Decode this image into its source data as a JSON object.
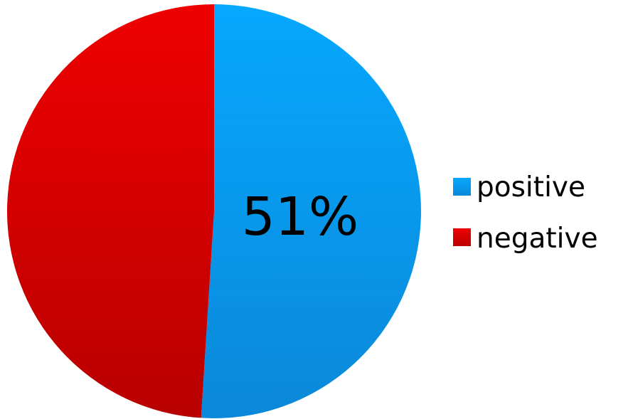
{
  "chart_data": {
    "type": "pie",
    "title": "",
    "slices": [
      {
        "label": "positive",
        "value": 51,
        "color": "#009ff0"
      },
      {
        "label": "negative",
        "value": 49,
        "color": "#e50000"
      }
    ],
    "data_labels": [
      {
        "slice": "positive",
        "text": "51%"
      }
    ],
    "legend": {
      "position": "right",
      "entries": [
        "positive",
        "negative"
      ]
    }
  }
}
